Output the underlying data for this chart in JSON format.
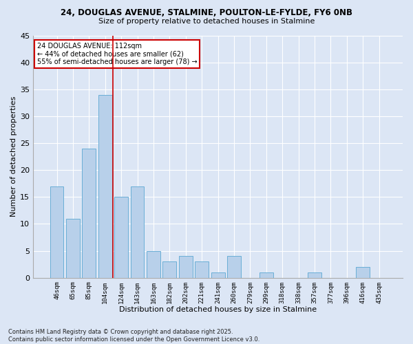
{
  "title1": "24, DOUGLAS AVENUE, STALMINE, POULTON-LE-FYLDE, FY6 0NB",
  "title2": "Size of property relative to detached houses in Stalmine",
  "xlabel": "Distribution of detached houses by size in Stalmine",
  "ylabel": "Number of detached properties",
  "categories": [
    "46sqm",
    "65sqm",
    "85sqm",
    "104sqm",
    "124sqm",
    "143sqm",
    "163sqm",
    "182sqm",
    "202sqm",
    "221sqm",
    "241sqm",
    "260sqm",
    "279sqm",
    "299sqm",
    "318sqm",
    "338sqm",
    "357sqm",
    "377sqm",
    "396sqm",
    "416sqm",
    "435sqm"
  ],
  "values": [
    17,
    11,
    24,
    34,
    15,
    17,
    5,
    3,
    4,
    3,
    1,
    4,
    0,
    1,
    0,
    0,
    1,
    0,
    0,
    2,
    0
  ],
  "bar_color": "#b8d0ea",
  "bar_edge_color": "#6aaed6",
  "background_color": "#dce6f5",
  "grid_color": "#ffffff",
  "vline_x": 3.5,
  "vline_color": "#cc0000",
  "annotation_text": "24 DOUGLAS AVENUE: 112sqm\n← 44% of detached houses are smaller (62)\n55% of semi-detached houses are larger (78) →",
  "annotation_box_facecolor": "#ffffff",
  "annotation_box_edge": "#cc0000",
  "ylim": [
    0,
    45
  ],
  "yticks": [
    0,
    5,
    10,
    15,
    20,
    25,
    30,
    35,
    40,
    45
  ],
  "footer": "Contains HM Land Registry data © Crown copyright and database right 2025.\nContains public sector information licensed under the Open Government Licence v3.0."
}
